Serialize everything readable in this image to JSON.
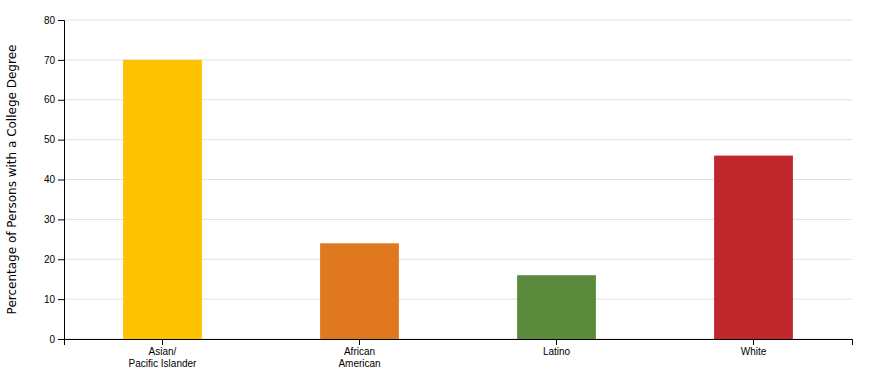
{
  "chart_data": {
    "type": "bar",
    "categories": [
      "Asian/\nPacific Islander",
      "African\nAmerican",
      "Latino",
      "White"
    ],
    "values": [
      70,
      24,
      16,
      46
    ],
    "colors": [
      "#FFC200",
      "#E07820",
      "#5B8A3C",
      "#C0272D"
    ],
    "ylabel": "Percentage of Persons with a College Degree",
    "ylim": [
      0,
      80
    ],
    "yticks": [
      0,
      10,
      20,
      30,
      40,
      50,
      60,
      70,
      80
    ],
    "grid": true
  }
}
